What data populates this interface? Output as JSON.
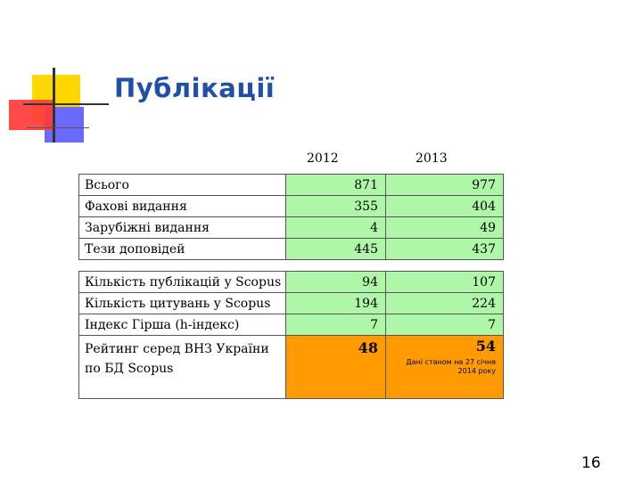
{
  "slide": {
    "title": "Публікації",
    "page_number": "16",
    "accent_colors": {
      "title": "#1f4fa6",
      "green_cells": "#aef7a8",
      "orange_cells": "#ff9a00",
      "deco_yellow": "#ffd700",
      "deco_blue": "#6a6aff",
      "deco_red": "#ff3b3b"
    }
  },
  "table": {
    "year_headers": [
      "2012",
      "2013"
    ],
    "block1": [
      {
        "label": "Всього",
        "y2012": "871",
        "y2013": "977"
      },
      {
        "label": "Фахові видання",
        "y2012": "355",
        "y2013": "404"
      },
      {
        "label": "Зарубіжні видання",
        "y2012": "4",
        "y2013": "49"
      },
      {
        "label": "Тези доповідей",
        "y2012": "445",
        "y2013": "437"
      }
    ],
    "block2": [
      {
        "label": "Кількість публікацій у Scopus",
        "y2012": "94",
        "y2013": "107"
      },
      {
        "label": "Кількість цитувань у Scopus",
        "y2012": "194",
        "y2013": "224"
      },
      {
        "label": "Індекс Гірша (h-індекс)",
        "y2012": "7",
        "y2013": "7"
      }
    ],
    "rating": {
      "label_line1": "Рейтинг серед ВНЗ України",
      "label_line2": "по БД Scopus",
      "y2012": "48",
      "y2013": "54",
      "note_line1": "Дані станом на 27 січня",
      "note_line2": "2014 року"
    }
  }
}
